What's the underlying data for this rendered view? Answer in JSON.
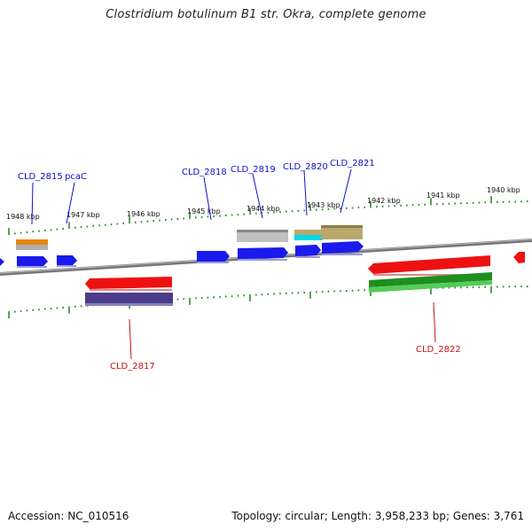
{
  "title": "Clostridium botulinum B1 str. Okra, complete genome",
  "footer": {
    "accession": "Accession: NC_010516",
    "topology": "Topology: circular; Length: 3,958,233 bp; Genes: 3,761"
  },
  "colors": {
    "top_label": "#1010cc",
    "bottom_label": "#cc1010",
    "tick": "#2e8b2e",
    "backbone": "#888888"
  },
  "kbp_labels": [
    "1948 kbp",
    "1947 kbp",
    "1946 kbp",
    "1945 kbp",
    "1944 kbp",
    "1943 kbp",
    "1942 kbp",
    "1941 kbp",
    "1940 kbp"
  ],
  "gene_labels_top": [
    "CLD_2815",
    "pcaC",
    "CLD_2818",
    "CLD_2819",
    "CLD_2820",
    "CLD_2821"
  ],
  "gene_labels_bottom": [
    "CLD_2817",
    "CLD_2822"
  ]
}
